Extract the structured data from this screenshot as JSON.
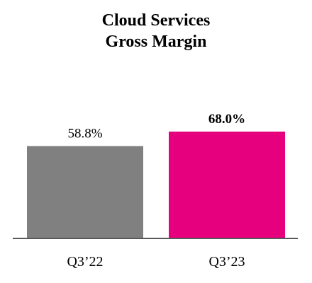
{
  "chart_data": {
    "type": "bar",
    "title_lines": [
      "Cloud Services",
      "Gross Margin"
    ],
    "categories": [
      "Q3’22",
      "Q3’23"
    ],
    "values": [
      58.8,
      68.0
    ],
    "data_labels": [
      "58.8%",
      "68.0%"
    ],
    "data_label_bold": [
      false,
      true
    ],
    "colors": [
      "#808080",
      "#E6007E"
    ],
    "axis_color": "#595959",
    "unit": "%",
    "ylim": [
      0,
      68.0
    ],
    "grid": false,
    "legend": "none"
  }
}
